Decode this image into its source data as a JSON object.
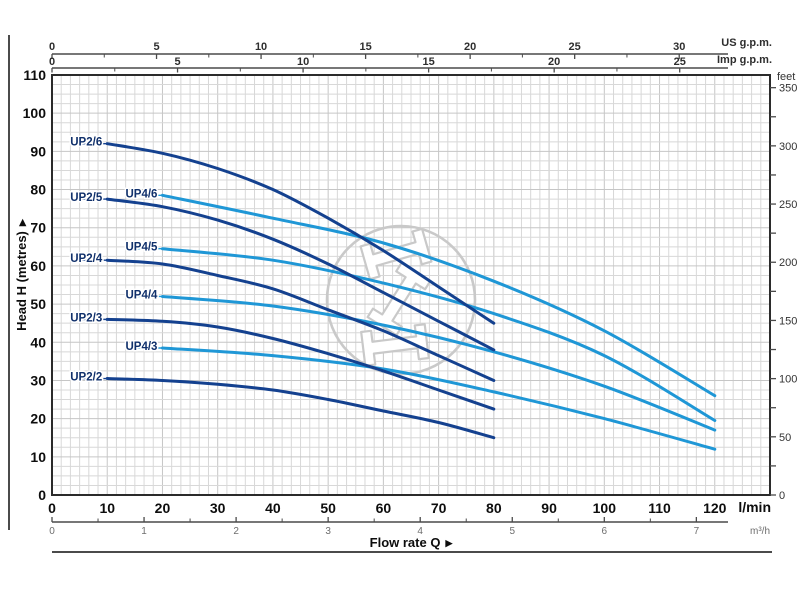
{
  "colors": {
    "dark_series": "#14418f",
    "light_series": "#1f97d6",
    "grid_minor": "#d8d8d8",
    "grid_major": "#c6c6c6",
    "border": "#2b2b2b",
    "axis_line": "#4a4a4a",
    "watermark": "#c9c9c9",
    "curve_label": "#10306b",
    "rule": "#4b4b4b"
  },
  "labels": {
    "flow_label": "Flow rate Q",
    "flow_arrow": "▶",
    "head_label": "Head H (metres)",
    "head_arrow": "▶",
    "unit_us": "US g.p.m.",
    "unit_imp": "Imp g.p.m.",
    "unit_feet": "feet",
    "unit_lmin": "l/min",
    "unit_m3h": "m³/h"
  },
  "chart_data": {
    "type": "line",
    "xlabel": "Flow rate Q",
    "ylabel": "Head H (metres)",
    "grid": "on",
    "x_range_lmin": [
      0,
      130
    ],
    "y_range_m": [
      0,
      110
    ],
    "axes": {
      "bottom_lmin": {
        "unit": "l/min",
        "ticks": [
          0,
          10,
          20,
          30,
          40,
          50,
          60,
          70,
          80,
          90,
          100,
          110,
          120
        ]
      },
      "bottom_m3h": {
        "unit": "m³/h",
        "ticks": [
          0,
          1,
          2,
          3,
          4,
          5,
          6,
          7
        ],
        "minor_step": 0.5,
        "lmin_per_unit": 16.6667
      },
      "top_us_gpm": {
        "unit": "US g.p.m.",
        "ticks": [
          0,
          5,
          10,
          15,
          20,
          25,
          30
        ],
        "minor_step": 2.5,
        "lmin_per_unit": 3.7854
      },
      "top_imp_gpm": {
        "unit": "Imp g.p.m.",
        "ticks": [
          0,
          5,
          10,
          15,
          20,
          25
        ],
        "minor_step": 2.5,
        "lmin_per_unit": 4.5461
      },
      "left_metres": {
        "unit": "metres",
        "ticks": [
          0,
          10,
          20,
          30,
          40,
          50,
          60,
          70,
          80,
          90,
          100,
          110
        ]
      },
      "right_feet": {
        "unit": "feet",
        "labeled_ticks": [
          0,
          50,
          100,
          150,
          200,
          250,
          300,
          350
        ],
        "minor_step": 25,
        "m_per_unit": 0.3048
      }
    },
    "series": [
      {
        "name": "UP4/6",
        "family": "UP4",
        "color_key": "light_series",
        "points": [
          [
            20,
            78.5
          ],
          [
            40,
            72.5
          ],
          [
            60,
            66
          ],
          [
            80,
            56
          ],
          [
            100,
            43
          ],
          [
            120,
            26
          ]
        ]
      },
      {
        "name": "UP4/5",
        "family": "UP4",
        "color_key": "light_series",
        "points": [
          [
            20,
            64.5
          ],
          [
            40,
            61.5
          ],
          [
            60,
            55.5
          ],
          [
            80,
            47.5
          ],
          [
            100,
            36.5
          ],
          [
            120,
            19.5
          ]
        ]
      },
      {
        "name": "UP4/4",
        "family": "UP4",
        "color_key": "light_series",
        "points": [
          [
            20,
            52
          ],
          [
            40,
            49.5
          ],
          [
            60,
            44.5
          ],
          [
            80,
            37.5
          ],
          [
            100,
            28.5
          ],
          [
            120,
            17
          ]
        ]
      },
      {
        "name": "UP4/3",
        "family": "UP4",
        "color_key": "light_series",
        "points": [
          [
            20,
            38.5
          ],
          [
            40,
            36.5
          ],
          [
            60,
            33
          ],
          [
            80,
            27
          ],
          [
            100,
            20
          ],
          [
            120,
            12
          ]
        ]
      },
      {
        "name": "UP2/6",
        "family": "UP2",
        "color_key": "dark_series",
        "points": [
          [
            10,
            92
          ],
          [
            20,
            89.5
          ],
          [
            30,
            85.5
          ],
          [
            40,
            80
          ],
          [
            50,
            72.5
          ],
          [
            60,
            64
          ],
          [
            70,
            54.5
          ],
          [
            80,
            45
          ]
        ]
      },
      {
        "name": "UP2/5",
        "family": "UP2",
        "color_key": "dark_series",
        "points": [
          [
            10,
            77.5
          ],
          [
            20,
            75.5
          ],
          [
            30,
            72
          ],
          [
            40,
            67
          ],
          [
            50,
            60.5
          ],
          [
            60,
            53
          ],
          [
            70,
            45.5
          ],
          [
            80,
            38
          ]
        ]
      },
      {
        "name": "UP2/4",
        "family": "UP2",
        "color_key": "dark_series",
        "points": [
          [
            10,
            61.5
          ],
          [
            20,
            60.5
          ],
          [
            30,
            57.5
          ],
          [
            40,
            54
          ],
          [
            50,
            48.5
          ],
          [
            60,
            43
          ],
          [
            70,
            36.5
          ],
          [
            80,
            30
          ]
        ]
      },
      {
        "name": "UP2/3",
        "family": "UP2",
        "color_key": "dark_series",
        "points": [
          [
            10,
            46
          ],
          [
            20,
            45.5
          ],
          [
            30,
            44
          ],
          [
            40,
            41
          ],
          [
            50,
            37
          ],
          [
            60,
            32.5
          ],
          [
            70,
            27.5
          ],
          [
            80,
            22.5
          ]
        ]
      },
      {
        "name": "UP2/2",
        "family": "UP2",
        "color_key": "dark_series",
        "points": [
          [
            10,
            30.5
          ],
          [
            20,
            30
          ],
          [
            30,
            29
          ],
          [
            40,
            27.5
          ],
          [
            50,
            25
          ],
          [
            60,
            22
          ],
          [
            70,
            19
          ],
          [
            80,
            15
          ]
        ]
      }
    ]
  }
}
